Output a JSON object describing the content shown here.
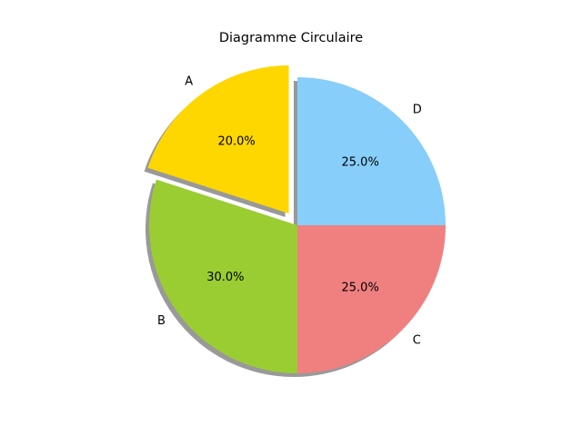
{
  "chart_data": {
    "type": "pie",
    "title": "Diagramme Circulaire",
    "categories": [
      "A",
      "B",
      "C",
      "D"
    ],
    "values": [
      20,
      30,
      25,
      25
    ],
    "percent_labels": [
      "20.0%",
      "30.0%",
      "25.0%",
      "25.0%"
    ],
    "colors": [
      "#ffd700",
      "#9acd32",
      "#f08080",
      "#87cefa"
    ],
    "exploded": [
      "A"
    ],
    "shadow": true,
    "legend": "none"
  }
}
